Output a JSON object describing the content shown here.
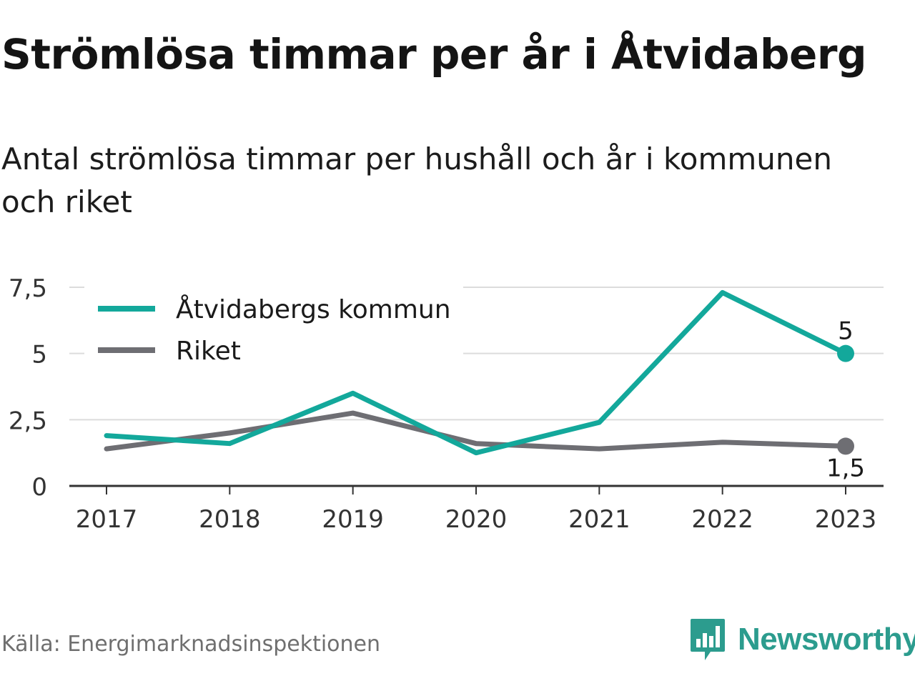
{
  "header": {
    "title": "Strömlösa timmar per år i Åtvidaberg",
    "subtitle": "Antal strömlösa timmar per hushåll och år i kommunen och riket"
  },
  "footer": {
    "source": "Källa: Energimarknadsinspektionen",
    "brand": "Newsworthy",
    "brand_icon": "bar-chart-speech-bubble-icon"
  },
  "colors": {
    "kommun": "#13a89b",
    "riket": "#6e6e73",
    "grid": "#dcdcdc",
    "axis": "#333333",
    "brand": "#2c9c8e"
  },
  "chart_data": {
    "type": "line",
    "title": "Strömlösa timmar per år i Åtvidaberg",
    "subtitle": "Antal strömlösa timmar per hushåll och år i kommunen och riket",
    "x": [
      "2017",
      "2018",
      "2019",
      "2020",
      "2021",
      "2022",
      "2023"
    ],
    "ylim": [
      0,
      7.5
    ],
    "yticks": [
      0,
      2.5,
      5,
      7.5
    ],
    "ytick_labels": [
      "0",
      "2,5",
      "5",
      "7,5"
    ],
    "grid": true,
    "legend_position": "top-left",
    "series": [
      {
        "name": "Åtvidabergs kommun",
        "color": "#13a89b",
        "values": [
          1.9,
          1.6,
          3.5,
          1.25,
          2.4,
          7.3,
          5.0
        ],
        "end_label": "5"
      },
      {
        "name": "Riket",
        "color": "#6e6e73",
        "values": [
          1.4,
          2.0,
          2.75,
          1.6,
          1.4,
          1.65,
          1.5
        ],
        "end_label": "1,5"
      }
    ]
  }
}
